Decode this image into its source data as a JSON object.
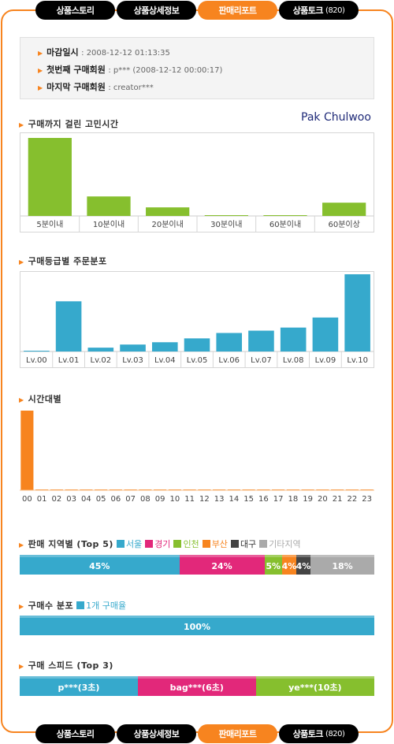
{
  "tabs": [
    {
      "label": "상품스토리",
      "count": "",
      "active": false
    },
    {
      "label": "상품상세정보",
      "count": "",
      "active": false
    },
    {
      "label": "판매리포트",
      "count": "",
      "active": true
    },
    {
      "label": "상품토크",
      "count": "(820)",
      "active": false
    }
  ],
  "info": {
    "deadline_label": "마감일시",
    "deadline_value": ": 2008-12-12 01:13:35",
    "first_buyer_label": "첫번째 구매회원",
    "first_buyer_value": ": p*** (2008-12-12 00:00:17)",
    "last_buyer_label": "마지막 구매회원",
    "last_buyer_value": ": creator***"
  },
  "author": "Pak Chulwoo",
  "sections": {
    "deliberation": "구매까지 걸린 고민시간",
    "grade": "구매등급별 주문분포",
    "hourly": "시간대별",
    "region": "판매 지역별 (Top 5)",
    "count": "구매수 분포",
    "speed": "구매 스피드 (Top 3)"
  },
  "colors": {
    "accent": "#f7841f",
    "green": "#86bf2e",
    "blue": "#36a9cc",
    "pink": "#e2287a",
    "dark": "#444444",
    "gray": "#aaaaaa"
  },
  "chart_data": [
    {
      "type": "bar",
      "categories": [
        "5분이내",
        "10분이내",
        "20분이내",
        "30분이내",
        "60분이내",
        "60분이상"
      ],
      "values": [
        100,
        25,
        11,
        1,
        1,
        17
      ],
      "ylim": [
        0,
        100
      ],
      "color": "#86bf2e"
    },
    {
      "type": "bar",
      "categories": [
        "Lv.00",
        "Lv.01",
        "Lv.02",
        "Lv.03",
        "Lv.04",
        "Lv.05",
        "Lv.06",
        "Lv.07",
        "Lv.08",
        "Lv.09",
        "Lv.10"
      ],
      "values": [
        1,
        65,
        5,
        9,
        12,
        17,
        24,
        27,
        31,
        44,
        100
      ],
      "ylim": [
        0,
        100
      ],
      "color": "#36a9cc"
    },
    {
      "type": "bar",
      "categories": [
        "00",
        "01",
        "02",
        "03",
        "04",
        "05",
        "06",
        "07",
        "08",
        "09",
        "10",
        "11",
        "12",
        "13",
        "14",
        "15",
        "16",
        "17",
        "18",
        "19",
        "20",
        "21",
        "22",
        "23"
      ],
      "values": [
        100,
        1,
        1,
        1,
        1,
        1,
        1,
        1,
        1,
        1,
        1,
        1,
        1,
        1,
        1,
        1,
        1,
        1,
        1,
        1,
        1,
        1,
        1,
        1
      ],
      "ylim": [
        0,
        100
      ],
      "color": "#f7841f"
    },
    {
      "type": "bar",
      "stacked": true,
      "legend": [
        "서울",
        "경기",
        "인천",
        "부산",
        "대구",
        "기타지역"
      ],
      "segments": [
        {
          "name": "서울",
          "value": 45,
          "label": "45%",
          "color": "#36a9cc"
        },
        {
          "name": "경기",
          "value": 24,
          "label": "24%",
          "color": "#e2287a"
        },
        {
          "name": "인천",
          "value": 5,
          "label": "5%",
          "color": "#86bf2e"
        },
        {
          "name": "부산",
          "value": 4,
          "label": "4%",
          "color": "#f7841f"
        },
        {
          "name": "대구",
          "value": 4,
          "label": "4%",
          "color": "#444444"
        },
        {
          "name": "기타지역",
          "value": 18,
          "label": "18%",
          "color": "#aaaaaa"
        }
      ]
    },
    {
      "type": "bar",
      "stacked": true,
      "legend": [
        "1개 구매율"
      ],
      "segments": [
        {
          "name": "1개 구매율",
          "value": 100,
          "label": "100%",
          "color": "#36a9cc"
        }
      ]
    },
    {
      "type": "bar",
      "stacked": true,
      "segments": [
        {
          "name": "p***",
          "value": 33.3,
          "label": "p***(3초)",
          "color": "#36a9cc"
        },
        {
          "name": "bag***",
          "value": 33.3,
          "label": "bag***(6초)",
          "color": "#e2287a"
        },
        {
          "name": "ye***",
          "value": 33.4,
          "label": "ye***(10초)",
          "color": "#86bf2e"
        }
      ]
    }
  ]
}
